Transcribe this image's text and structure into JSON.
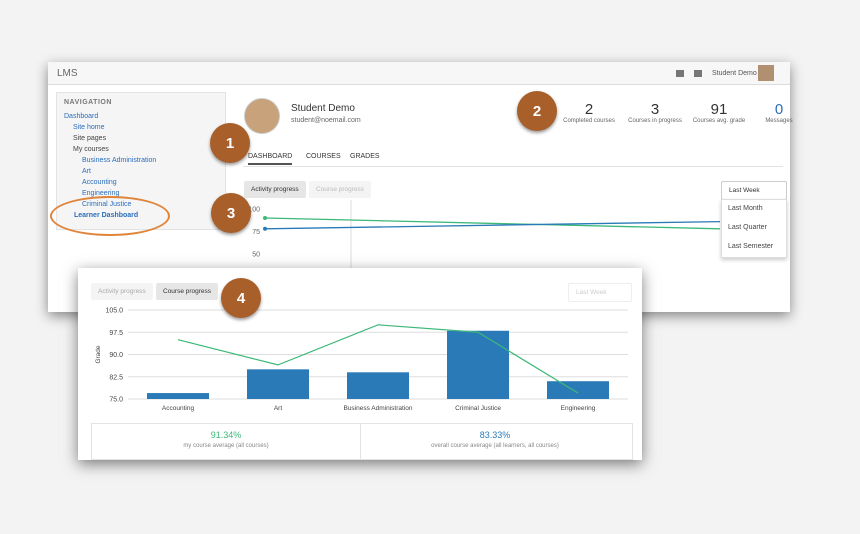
{
  "app": {
    "title": "LMS",
    "user": "Student Demo"
  },
  "navigation": {
    "heading": "NAVIGATION",
    "items": [
      "Dashboard",
      "Site home",
      "Site pages",
      "My courses"
    ],
    "courses": [
      "Business Administration",
      "Art",
      "Accounting",
      "Engineering",
      "Criminal Justice"
    ],
    "highlight": "Learner Dashboard"
  },
  "profile": {
    "name": "Student Demo",
    "email": "student@noemail.com"
  },
  "stats": [
    {
      "value": "2",
      "label": "Completed courses"
    },
    {
      "value": "3",
      "label": "Courses in progress"
    },
    {
      "value": "91",
      "label": "Courses avg. grade"
    },
    {
      "value": "0",
      "label": "Messages"
    }
  ],
  "tabs": [
    "DASHBOARD",
    "COURSES",
    "GRADES"
  ],
  "progress_tabs": [
    "Activity progress",
    "Course progress"
  ],
  "period": {
    "selected": "Last Week",
    "options": [
      "Last Month",
      "Last Quarter",
      "Last Semester"
    ]
  },
  "callouts": [
    "1",
    "2",
    "3",
    "4"
  ],
  "activity_chart": {
    "type": "line",
    "ylim": [
      50,
      100
    ],
    "yticks": [
      100,
      75,
      50
    ],
    "series": [
      {
        "color": "#3cb878",
        "values": [
          90,
          78
        ]
      },
      {
        "color": "#2a7ab8",
        "values": [
          78,
          86
        ]
      }
    ]
  },
  "course_chart": {
    "type": "bar",
    "y_label": "Grade",
    "categories": [
      "Accounting",
      "Art",
      "Business Administration",
      "Criminal Justice",
      "Engineering"
    ],
    "series": [
      {
        "type": "bar",
        "color": "#2a7ab8",
        "values": [
          77,
          85,
          84,
          98,
          81
        ]
      },
      {
        "type": "line",
        "color": "#3cb878",
        "values": [
          95,
          86.5,
          100,
          97.5,
          77
        ]
      }
    ],
    "ylim": [
      75,
      105
    ],
    "yticks": [
      {
        "value": 75,
        "label": "75.0"
      },
      {
        "value": 82.5,
        "label": "82.5"
      },
      {
        "value": 90,
        "label": "90.0"
      },
      {
        "value": 97.5,
        "label": "97.5"
      },
      {
        "value": 105,
        "label": "105.0"
      }
    ],
    "grid": true
  },
  "summary": [
    {
      "value": "91.34%",
      "label": "my course average (all courses)"
    },
    {
      "value": "83.33%",
      "label": "overall course average (all learners, all courses)"
    }
  ]
}
